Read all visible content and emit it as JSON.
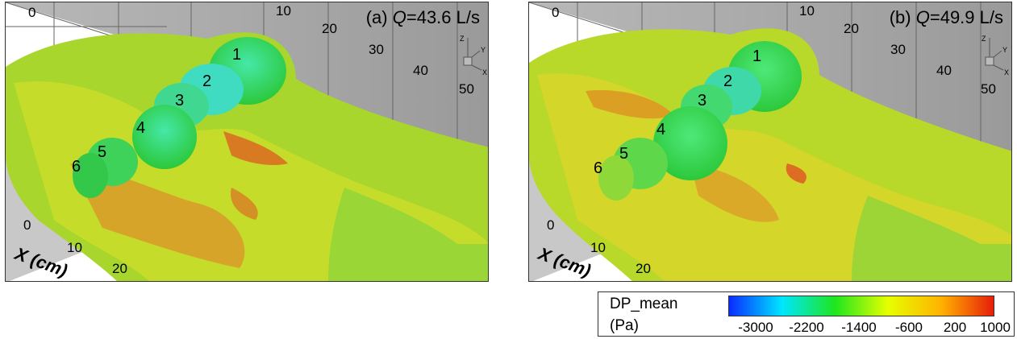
{
  "panels": [
    {
      "title_prefix": "(a) ",
      "title_var": "Q",
      "title_value": "=43.6 L/s",
      "top_ticks": [
        "0",
        "10",
        "20",
        "30",
        "40",
        "50"
      ],
      "side_ticks": [
        "0",
        "10",
        "20"
      ],
      "axis_label": "X (cm)",
      "cylinders": [
        "1",
        "2",
        "3",
        "4",
        "5",
        "6"
      ],
      "triad": {
        "z": "Z",
        "y": "Y",
        "x": "X"
      }
    },
    {
      "title_prefix": "(b) ",
      "title_var": "Q",
      "title_value": "=49.9 L/s",
      "top_ticks": [
        "0",
        "10",
        "20",
        "30",
        "40",
        "50"
      ],
      "side_ticks": [
        "0",
        "10",
        "20"
      ],
      "axis_label": "X (cm)",
      "cylinders": [
        "1",
        "2",
        "3",
        "4",
        "5",
        "6"
      ],
      "triad": {
        "z": "Z",
        "y": "Y",
        "x": "X"
      }
    }
  ],
  "legend": {
    "title": "DP_mean",
    "unit": "(Pa)",
    "ticks": [
      "-3000",
      "-2200",
      "-1400",
      "-600",
      "200",
      "1000"
    ],
    "colors": [
      "#0a2bff",
      "#00e6ff",
      "#1ee61e",
      "#e6ff00",
      "#ffb300",
      "#e61e0a"
    ]
  }
}
